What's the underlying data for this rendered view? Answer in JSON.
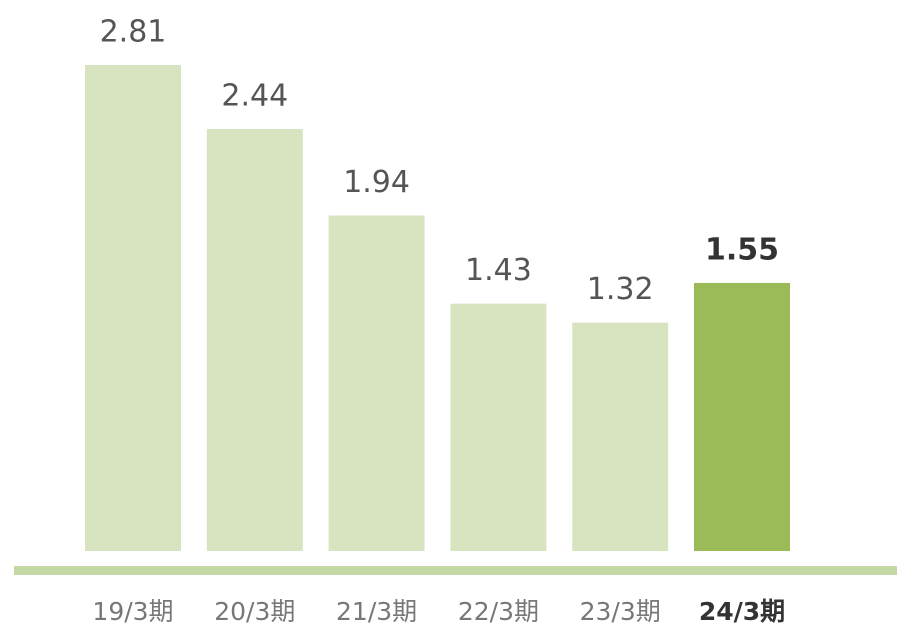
{
  "chart_data": {
    "type": "bar",
    "categories": [
      "19/3期",
      "20/3期",
      "21/3期",
      "22/3期",
      "23/3期",
      "24/3期"
    ],
    "values": [
      2.81,
      2.44,
      1.94,
      1.43,
      1.32,
      1.55
    ],
    "colors": [
      "#d8e4c0",
      "#d8e4c0",
      "#d8e4c0",
      "#d8e4c0",
      "#d8e4c0",
      "#9bbb59"
    ]
  }
}
